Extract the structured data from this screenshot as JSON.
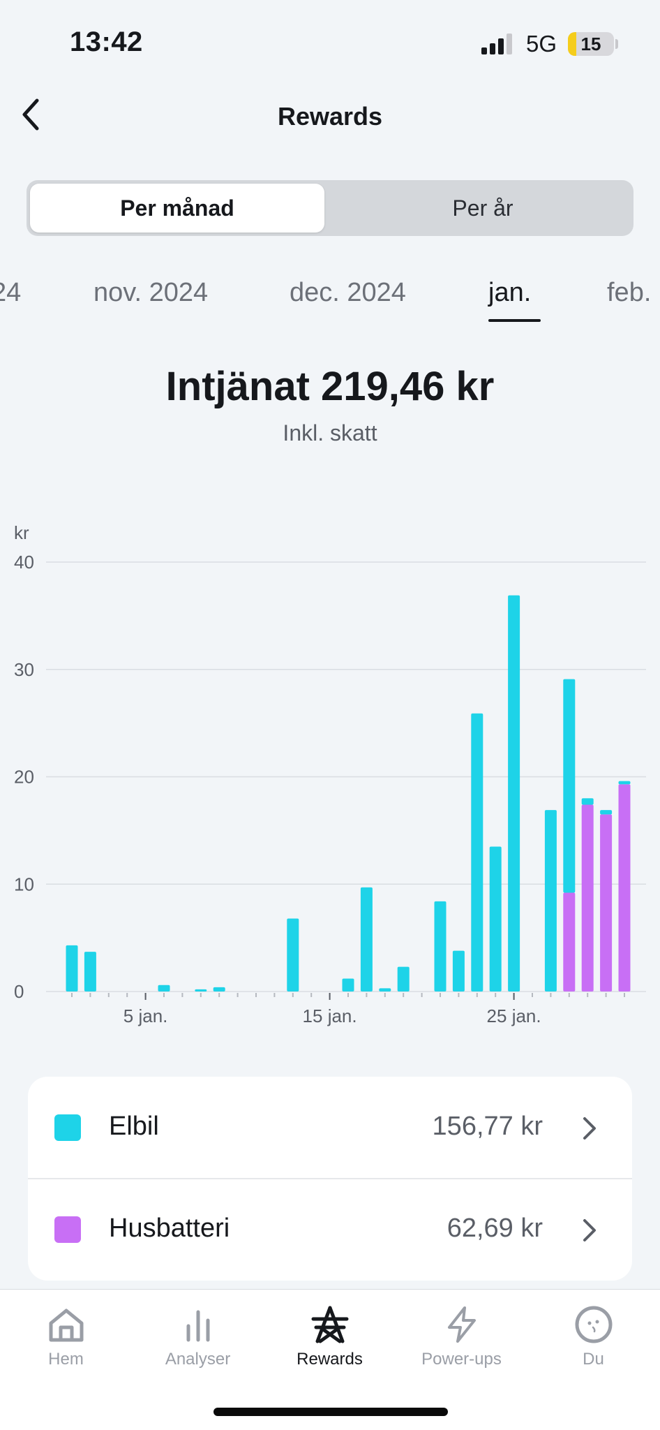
{
  "status_bar": {
    "time": "13:42",
    "network": "5G",
    "battery": "15"
  },
  "header": {
    "title": "Rewards"
  },
  "segmented": {
    "options": [
      "Per månad",
      "Per år"
    ],
    "selected": 0
  },
  "months": [
    {
      "label": "24",
      "current": false
    },
    {
      "label": "nov. 2024",
      "current": false
    },
    {
      "label": "dec. 2024",
      "current": false
    },
    {
      "label": "jan.",
      "current": true
    },
    {
      "label": "feb.",
      "current": false
    }
  ],
  "summary": {
    "earned": "Intjänat 219,46 kr",
    "subtitle": "Inkl. skatt"
  },
  "chart_data": {
    "type": "bar",
    "stacked": true,
    "ylabel": "kr",
    "ylim": [
      0,
      40
    ],
    "yticks": [
      "0",
      "10",
      "20",
      "30",
      "40"
    ],
    "x_tick_labels": [
      {
        "day": 5,
        "label": "5 jan."
      },
      {
        "day": 15,
        "label": "15 jan."
      },
      {
        "day": 25,
        "label": "25 jan."
      }
    ],
    "x": [
      1,
      2,
      3,
      4,
      5,
      6,
      7,
      8,
      9,
      10,
      11,
      12,
      13,
      14,
      15,
      16,
      17,
      18,
      19,
      20,
      21,
      22,
      23,
      24,
      25,
      26,
      27,
      28,
      29,
      30,
      31
    ],
    "series": [
      {
        "name": "Husbatteri",
        "color": "#c86ff5",
        "values": [
          0,
          0,
          0,
          0,
          0,
          0,
          0,
          0,
          0,
          0,
          0,
          0,
          0,
          0,
          0,
          0,
          0,
          0,
          0,
          0,
          0,
          0,
          0,
          0,
          0,
          0,
          0,
          9.2,
          17.4,
          16.5,
          19.3
        ]
      },
      {
        "name": "Elbil",
        "color": "#1ed3e8",
        "values": [
          4.3,
          3.7,
          0,
          0,
          0,
          0.6,
          0,
          0.2,
          0.4,
          0,
          0,
          0,
          6.8,
          0,
          0,
          1.2,
          9.7,
          0.3,
          2.3,
          0,
          8.4,
          3.8,
          25.9,
          13.5,
          36.9,
          0,
          16.9,
          19.9,
          0.6,
          0.4,
          0.3
        ]
      }
    ],
    "grid": true
  },
  "legend_rows": [
    {
      "label": "Elbil",
      "value": "156,77 kr",
      "color": "#1ed3e8"
    },
    {
      "label": "Husbatteri",
      "value": "62,69 kr",
      "color": "#c86ff5"
    }
  ],
  "tabbar": {
    "items": [
      {
        "label": "Hem",
        "icon": "home-icon",
        "active": false
      },
      {
        "label": "Analyser",
        "icon": "bar-chart-icon",
        "active": false
      },
      {
        "label": "Rewards",
        "icon": "power-pylon-icon",
        "active": true
      },
      {
        "label": "Power-ups",
        "icon": "lightning-icon",
        "active": false
      },
      {
        "label": "Du",
        "icon": "profile-face-icon",
        "active": false
      }
    ]
  }
}
